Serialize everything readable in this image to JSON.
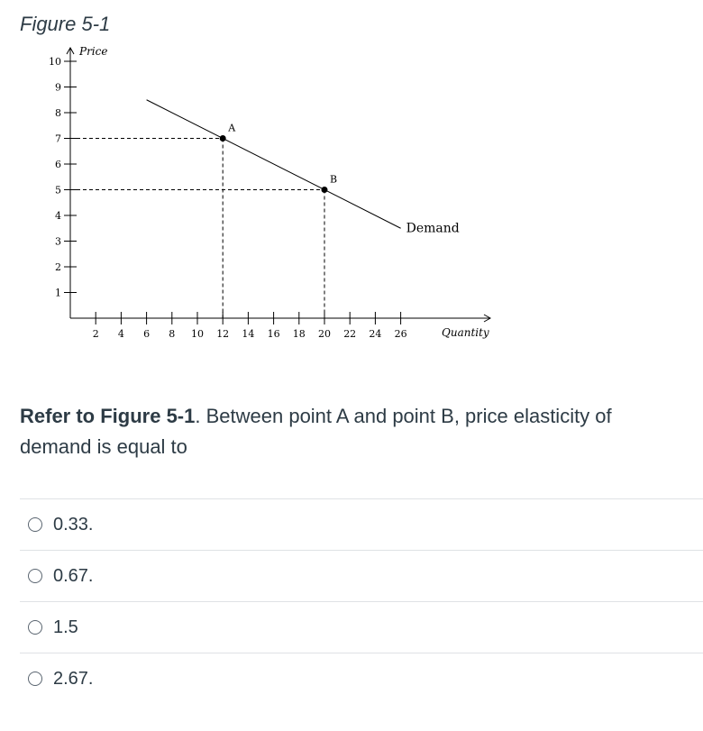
{
  "figure_title": "Figure 5-1",
  "chart_data": {
    "type": "line",
    "title": "Figure 5-1",
    "xlabel": "Quantity",
    "ylabel": "Price",
    "xlim": [
      0,
      28
    ],
    "ylim": [
      0,
      10
    ],
    "x_ticks": [
      2,
      4,
      6,
      8,
      10,
      12,
      14,
      16,
      18,
      20,
      22,
      24,
      26
    ],
    "y_ticks": [
      1,
      2,
      3,
      4,
      5,
      6,
      7,
      8,
      9,
      10
    ],
    "series": [
      {
        "name": "Demand",
        "x": [
          6,
          26
        ],
        "y": [
          8.5,
          3.5
        ]
      }
    ],
    "points": [
      {
        "label": "A",
        "x": 12,
        "y": 7
      },
      {
        "label": "B",
        "x": 20,
        "y": 5
      }
    ],
    "reference_lines": "dashed lines from each point to both axes"
  },
  "question": {
    "figure_ref": "Refer to Figure 5-1",
    "text": ". Between point A and point B, price elasticity of demand is equal to"
  },
  "answers": [
    "0.33.",
    "0.67.",
    "1.5",
    "2.67."
  ]
}
